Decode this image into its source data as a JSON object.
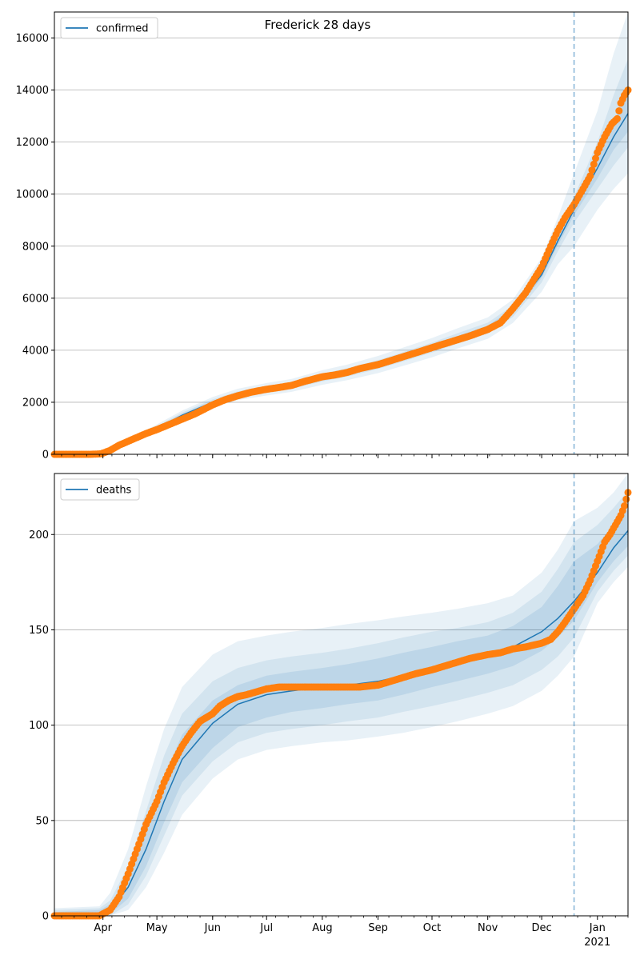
{
  "figure": {
    "title": "Frederick 28 days",
    "year_label": "2021",
    "observed_color": "#ff7f0e",
    "model_color": "#1f77b4",
    "band_color": "#1f77b4"
  },
  "x_ticks": [
    "Apr",
    "May",
    "Jun",
    "Jul",
    "Aug",
    "Sep",
    "Oct",
    "Nov",
    "Dec",
    "Jan"
  ],
  "chart_data": [
    {
      "type": "line",
      "legend": "confirmed",
      "legend_position": "top-left",
      "grid": "y",
      "x_range": [
        "2020-03-05",
        "2021-01-18"
      ],
      "forecast_start": "2020-12-19",
      "ylim": [
        0,
        17000
      ],
      "yticks": [
        0,
        2000,
        4000,
        6000,
        8000,
        10000,
        12000,
        14000,
        16000
      ],
      "model_median": {
        "x": [
          "2020-03-05",
          "2020-03-25",
          "2020-04-05",
          "2020-04-15",
          "2020-05-01",
          "2020-05-15",
          "2020-06-01",
          "2020-06-15",
          "2020-07-01",
          "2020-07-15",
          "2020-08-01",
          "2020-08-15",
          "2020-09-01",
          "2020-09-15",
          "2020-10-01",
          "2020-10-15",
          "2020-11-01",
          "2020-11-15",
          "2020-12-01",
          "2020-12-10",
          "2020-12-19",
          "2021-01-01",
          "2021-01-10",
          "2021-01-18"
        ],
        "y": [
          0,
          20,
          200,
          500,
          1000,
          1500,
          2000,
          2300,
          2500,
          2650,
          2950,
          3150,
          3450,
          3750,
          4100,
          4450,
          4850,
          5500,
          6900,
          8200,
          9400,
          11000,
          12200,
          13100
        ]
      },
      "bands_upper": [
        [
          0,
          40,
          260,
          600,
          1150,
          1680,
          2200,
          2520,
          2740,
          2900,
          3230,
          3450,
          3780,
          4100,
          4470,
          4840,
          5260,
          5950,
          7550,
          9100,
          10800,
          13200,
          15400,
          17000
        ],
        [
          0,
          30,
          235,
          560,
          1085,
          1600,
          2110,
          2420,
          2620,
          2780,
          3100,
          3310,
          3620,
          3930,
          4290,
          4650,
          5060,
          5720,
          7200,
          8600,
          9900,
          12000,
          13800,
          15200
        ],
        [
          0,
          25,
          215,
          525,
          1040,
          1545,
          2050,
          2360,
          2560,
          2710,
          3020,
          3225,
          3530,
          3835,
          4190,
          4545,
          4950,
          5605,
          7020,
          8370,
          9600,
          11400,
          12800,
          13900
        ]
      ],
      "bands_lower": [
        [
          0,
          0,
          140,
          400,
          850,
          1320,
          1800,
          2080,
          2260,
          2400,
          2670,
          2850,
          3120,
          3400,
          3730,
          4060,
          4440,
          5050,
          6250,
          7300,
          8000,
          9400,
          10200,
          10800
        ],
        [
          0,
          8,
          165,
          440,
          915,
          1400,
          1890,
          2180,
          2380,
          2520,
          2800,
          2990,
          3280,
          3570,
          3910,
          4250,
          4640,
          5280,
          6600,
          7800,
          8900,
          10200,
          11100,
          11800
        ],
        [
          0,
          12,
          185,
          475,
          960,
          1455,
          1950,
          2240,
          2440,
          2590,
          2880,
          3075,
          3370,
          3665,
          4010,
          4355,
          4750,
          5395,
          6780,
          8030,
          9200,
          10600,
          11700,
          12400
        ]
      ],
      "observed": {
        "x": [
          "2020-03-05",
          "2020-03-15",
          "2020-03-25",
          "2020-03-31",
          "2020-04-05",
          "2020-04-10",
          "2020-04-15",
          "2020-04-20",
          "2020-04-25",
          "2020-05-01",
          "2020-05-08",
          "2020-05-15",
          "2020-05-22",
          "2020-06-01",
          "2020-06-08",
          "2020-06-15",
          "2020-06-22",
          "2020-07-01",
          "2020-07-08",
          "2020-07-15",
          "2020-07-22",
          "2020-08-01",
          "2020-08-08",
          "2020-08-15",
          "2020-08-22",
          "2020-09-01",
          "2020-09-08",
          "2020-09-15",
          "2020-09-22",
          "2020-10-01",
          "2020-10-08",
          "2020-10-15",
          "2020-10-22",
          "2020-11-01",
          "2020-11-08",
          "2020-11-15",
          "2020-11-22",
          "2020-12-01",
          "2020-12-06",
          "2020-12-10",
          "2020-12-14",
          "2020-12-19",
          "2020-12-24",
          "2020-12-28",
          "2021-01-01",
          "2021-01-05",
          "2021-01-09",
          "2021-01-12",
          "2021-01-14",
          "2021-01-16",
          "2021-01-18"
        ],
        "y": [
          0,
          0,
          0,
          20,
          150,
          350,
          500,
          650,
          800,
          950,
          1150,
          1350,
          1550,
          1900,
          2100,
          2250,
          2380,
          2500,
          2570,
          2650,
          2800,
          2980,
          3050,
          3150,
          3300,
          3450,
          3600,
          3750,
          3900,
          4100,
          4250,
          4400,
          4550,
          4800,
          5050,
          5600,
          6200,
          7200,
          8000,
          8600,
          9100,
          9600,
          10200,
          10700,
          11600,
          12200,
          12700,
          12900,
          13500,
          13800,
          14000
        ]
      }
    },
    {
      "type": "line",
      "legend": "deaths",
      "legend_position": "top-left",
      "grid": "y",
      "x_range": [
        "2020-03-05",
        "2021-01-18"
      ],
      "forecast_start": "2020-12-19",
      "ylim": [
        0,
        232
      ],
      "yticks": [
        0,
        50,
        100,
        150,
        200
      ],
      "model_median": {
        "x": [
          "2020-03-05",
          "2020-03-30",
          "2020-04-05",
          "2020-04-15",
          "2020-04-25",
          "2020-05-05",
          "2020-05-15",
          "2020-06-01",
          "2020-06-15",
          "2020-07-01",
          "2020-07-15",
          "2020-08-01",
          "2020-08-15",
          "2020-09-01",
          "2020-09-15",
          "2020-10-01",
          "2020-10-15",
          "2020-11-01",
          "2020-11-15",
          "2020-12-01",
          "2020-12-10",
          "2020-12-19",
          "2021-01-01",
          "2021-01-10",
          "2021-01-18"
        ],
        "y": [
          0,
          0,
          3,
          15,
          35,
          60,
          82,
          101,
          111,
          116,
          118,
          120,
          121,
          123,
          126,
          130,
          133,
          137,
          141,
          149,
          156,
          165,
          180,
          193,
          202
        ]
      },
      "bands_upper": [
        [
          4,
          5,
          12,
          35,
          68,
          98,
          120,
          137,
          144,
          147,
          149,
          151,
          153,
          155,
          157,
          159,
          161,
          164,
          168,
          180,
          192,
          207,
          214,
          222,
          232
        ],
        [
          3,
          4,
          8,
          26,
          55,
          84,
          106,
          123,
          130,
          134,
          136,
          138,
          140,
          143,
          146,
          149,
          151,
          154,
          159,
          170,
          182,
          196,
          205,
          214,
          223
        ],
        [
          2,
          3,
          6,
          21,
          46,
          73,
          95,
          113,
          121,
          126,
          128,
          130,
          132,
          135,
          138,
          141,
          144,
          147,
          152,
          162,
          173,
          186,
          195,
          205,
          213
        ]
      ],
      "bands_lower": [
        [
          0,
          0,
          0,
          3,
          15,
          33,
          53,
          72,
          82,
          87,
          89,
          91,
          92,
          94,
          96,
          99,
          102,
          106,
          110,
          118,
          126,
          136,
          164,
          175,
          183
        ],
        [
          0,
          0,
          0,
          6,
          21,
          42,
          63,
          81,
          91,
          96,
          98,
          100,
          102,
          104,
          107,
          110,
          113,
          117,
          121,
          129,
          136,
          146,
          170,
          181,
          189
        ],
        [
          0,
          0,
          1,
          9,
          26,
          49,
          70,
          88,
          99,
          104,
          107,
          109,
          111,
          113,
          116,
          120,
          123,
          127,
          131,
          139,
          146,
          155,
          175,
          186,
          194
        ]
      ],
      "observed": {
        "x": [
          "2020-03-05",
          "2020-03-20",
          "2020-03-30",
          "2020-04-05",
          "2020-04-10",
          "2020-04-15",
          "2020-04-20",
          "2020-04-25",
          "2020-05-01",
          "2020-05-05",
          "2020-05-10",
          "2020-05-15",
          "2020-05-20",
          "2020-05-25",
          "2020-06-01",
          "2020-06-05",
          "2020-06-10",
          "2020-06-15",
          "2020-06-20",
          "2020-07-01",
          "2020-07-08",
          "2020-07-15",
          "2020-07-22",
          "2020-08-01",
          "2020-08-08",
          "2020-08-15",
          "2020-08-22",
          "2020-09-01",
          "2020-09-08",
          "2020-09-15",
          "2020-09-22",
          "2020-10-01",
          "2020-10-08",
          "2020-10-15",
          "2020-10-22",
          "2020-11-01",
          "2020-11-08",
          "2020-11-15",
          "2020-11-22",
          "2020-12-01",
          "2020-12-06",
          "2020-12-10",
          "2020-12-14",
          "2020-12-19",
          "2020-12-24",
          "2020-12-28",
          "2021-01-01",
          "2021-01-05",
          "2021-01-08",
          "2021-01-11",
          "2021-01-14",
          "2021-01-16",
          "2021-01-18"
        ],
        "y": [
          0,
          0,
          0,
          3,
          10,
          22,
          35,
          48,
          60,
          70,
          80,
          89,
          96,
          102,
          106,
          110,
          113,
          115,
          116,
          119,
          120,
          120,
          120,
          120,
          120,
          120,
          120,
          121,
          123,
          125,
          127,
          129,
          131,
          133,
          135,
          137,
          138,
          140,
          141,
          143,
          145,
          149,
          154,
          161,
          168,
          176,
          186,
          196,
          200,
          205,
          210,
          215,
          222
        ]
      }
    }
  ]
}
